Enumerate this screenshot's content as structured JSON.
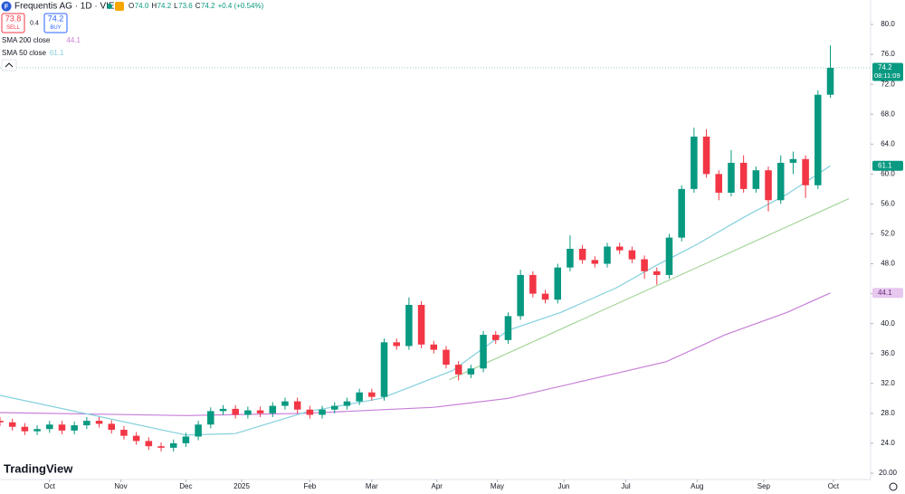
{
  "header": {
    "logo": "F",
    "symbol": "Frequentis AG · 1D · VIE",
    "ohlc": [
      {
        "k": "O",
        "v": "74.0"
      },
      {
        "k": "H",
        "v": "74.2"
      },
      {
        "k": "L",
        "v": "73.6"
      },
      {
        "k": "C",
        "v": "74.2"
      }
    ],
    "change": "+0.4 (+0.54%)",
    "sell_price": "73.8",
    "sell": "SELL",
    "spread": "0.4",
    "buy_price": "74.2",
    "buy": "BUY",
    "watermark": "TradingView"
  },
  "chart_data": {
    "type": "candlestick",
    "up_color": "#089981",
    "down_color": "#f23645",
    "x": [
      0,
      4,
      8,
      12,
      16,
      20,
      24,
      28,
      32,
      36,
      40,
      44,
      48,
      52,
      56,
      60,
      64,
      68,
      72,
      76,
      80,
      84,
      88,
      92,
      96,
      100,
      104,
      108,
      112,
      116,
      120,
      124,
      128,
      132,
      136,
      140,
      144,
      148,
      152,
      156,
      160,
      164,
      168,
      172,
      176,
      180,
      184,
      188,
      192,
      196,
      200,
      204,
      208,
      212,
      216,
      220,
      224,
      228,
      232,
      236,
      240,
      244,
      248,
      252,
      256,
      260,
      264,
      268
    ],
    "open": [
      27.0,
      26.8,
      26.2,
      25.6,
      25.9,
      26.5,
      25.7,
      26.4,
      27.0,
      26.6,
      25.8,
      25.0,
      24.3,
      23.6,
      23.4,
      24.0,
      24.9,
      26.5,
      28.3,
      28.6,
      27.8,
      28.4,
      28.0,
      29.0,
      29.6,
      28.5,
      27.8,
      28.5,
      29.0,
      29.6,
      30.8,
      30.2,
      37.5,
      37.0,
      42.5,
      37.2,
      36.5,
      34.5,
      33.2,
      34.0,
      38.5,
      37.8,
      41.0,
      46.5,
      44.0,
      43.2,
      47.5,
      50.0,
      48.5,
      48.0,
      50.3,
      49.8,
      48.6,
      47.0,
      46.5,
      51.5,
      58.0,
      65.0,
      60.0,
      57.5,
      61.5,
      58.0,
      60.5,
      56.5,
      61.5,
      62.0,
      58.5,
      70.6
    ],
    "high": [
      27.5,
      27.3,
      26.7,
      26.4,
      27.0,
      27.0,
      26.9,
      27.5,
      27.5,
      27.1,
      26.3,
      25.5,
      24.8,
      24.1,
      24.5,
      25.4,
      27.0,
      28.8,
      29.1,
      29.1,
      28.9,
      28.9,
      29.5,
      30.1,
      30.1,
      29.0,
      29.0,
      29.5,
      30.1,
      31.3,
      31.3,
      38.0,
      38.0,
      43.5,
      43.0,
      37.7,
      37.0,
      35.0,
      34.5,
      39.0,
      39.0,
      41.5,
      47.2,
      47.0,
      44.5,
      48.0,
      51.8,
      50.5,
      49.0,
      50.8,
      50.8,
      50.3,
      49.1,
      47.5,
      52.0,
      58.5,
      66.2,
      66.0,
      60.5,
      63.2,
      62.5,
      61.0,
      61.0,
      62.5,
      63.0,
      62.5,
      71.2,
      77.2
    ],
    "low": [
      26.3,
      25.7,
      25.1,
      25.1,
      25.4,
      25.2,
      25.2,
      25.9,
      26.1,
      25.3,
      24.5,
      23.8,
      23.1,
      22.9,
      22.9,
      23.5,
      24.4,
      26.0,
      27.8,
      27.3,
      27.3,
      27.5,
      27.5,
      28.5,
      28.0,
      27.3,
      27.3,
      28.0,
      28.5,
      29.1,
      29.7,
      29.7,
      36.5,
      36.5,
      36.7,
      36.0,
      34.0,
      32.4,
      32.7,
      33.5,
      37.3,
      37.3,
      40.5,
      43.5,
      42.7,
      42.7,
      47.0,
      48.0,
      47.5,
      47.5,
      49.3,
      48.1,
      46.0,
      45.2,
      46.0,
      51.0,
      57.5,
      59.5,
      56.5,
      57.0,
      57.5,
      57.5,
      55.0,
      56.0,
      60.0,
      56.8,
      58.0,
      70.2
    ],
    "close": [
      26.8,
      26.2,
      25.6,
      25.9,
      26.5,
      25.7,
      26.4,
      27.0,
      26.6,
      25.8,
      25.0,
      24.3,
      23.6,
      23.4,
      24.0,
      24.9,
      26.5,
      28.3,
      28.6,
      27.8,
      28.4,
      28.0,
      29.0,
      29.6,
      28.5,
      27.8,
      28.5,
      29.0,
      29.6,
      30.8,
      30.2,
      37.5,
      37.0,
      42.5,
      37.2,
      36.5,
      34.5,
      33.2,
      34.0,
      38.5,
      37.8,
      41.0,
      46.5,
      44.0,
      43.2,
      47.5,
      50.0,
      48.5,
      48.0,
      50.3,
      49.8,
      48.6,
      47.0,
      46.5,
      51.5,
      58.0,
      65.0,
      60.0,
      57.5,
      61.5,
      58.0,
      60.5,
      56.5,
      61.5,
      62.0,
      58.5,
      70.6,
      74.2
    ],
    "countdown": "08:11:09",
    "lines": [
      {
        "name": "SMA 200 close",
        "color": "#c87fd8",
        "badge_bg": "#e6c7ee",
        "x": [
          0,
          60,
          99,
          140,
          164,
          190,
          215,
          234,
          254,
          268
        ],
        "values": [
          28.1,
          27.7,
          28.0,
          28.8,
          30.0,
          32.5,
          34.9,
          38.5,
          41.5,
          44.1
        ]
      },
      {
        "name": "SMA 50 close",
        "color": "#83d0dc",
        "badge_bg": "#089981",
        "x": [
          0,
          60,
          76,
          99,
          123,
          146,
          164,
          181,
          199,
          211,
          225,
          240,
          254,
          268
        ],
        "values": [
          30.4,
          25.1,
          25.3,
          28.2,
          30.0,
          33.7,
          39.1,
          41.5,
          44.8,
          47.6,
          50.6,
          54.2,
          57.3,
          61.1
        ]
      }
    ],
    "trendline": {
      "color": "#a5d59a",
      "x": [
        145,
        274
      ],
      "values": [
        32.5,
        56.7
      ]
    },
    "xlim": [
      0,
      281
    ],
    "ylim": [
      19.15,
      83.27
    ],
    "xticks": [
      {
        "value": 16,
        "label": "Oct"
      },
      {
        "value": 39,
        "label": "Nov"
      },
      {
        "value": 60,
        "label": "Dec"
      },
      {
        "value": 78,
        "label": "2025"
      },
      {
        "value": 100,
        "label": "Feb"
      },
      {
        "value": 120,
        "label": "Mar"
      },
      {
        "value": 141,
        "label": "Apr"
      },
      {
        "value": 160.5,
        "label": "May"
      },
      {
        "value": 182,
        "label": "Jun"
      },
      {
        "value": 202,
        "label": "Jul"
      },
      {
        "value": 225,
        "label": "Aug"
      },
      {
        "value": 246.5,
        "label": "Sep"
      },
      {
        "value": 269,
        "label": "Oct"
      }
    ],
    "yticks": [
      {
        "value": 20,
        "label": "20.00"
      },
      {
        "value": 24,
        "label": "24.0"
      },
      {
        "value": 28,
        "label": "28.0"
      },
      {
        "value": 32,
        "label": "32.0"
      },
      {
        "value": 36,
        "label": "36.0"
      },
      {
        "value": 40,
        "label": "40.0"
      },
      {
        "value": 44,
        "label": "44.0"
      },
      {
        "value": 48,
        "label": "48.0"
      },
      {
        "value": 52,
        "label": "52.0"
      },
      {
        "value": 56,
        "label": "56.0"
      },
      {
        "value": 60,
        "label": "60.0"
      },
      {
        "value": 64,
        "label": "64.0"
      },
      {
        "value": 68,
        "label": "68.0"
      },
      {
        "value": 72,
        "label": "72.0"
      },
      {
        "value": 76,
        "label": "76.0"
      },
      {
        "value": 80,
        "label": "80.0"
      }
    ]
  }
}
